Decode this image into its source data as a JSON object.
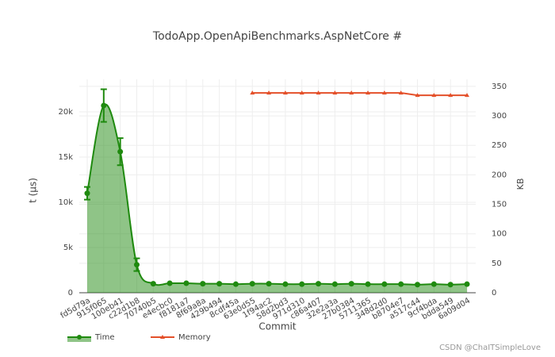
{
  "chart_data": {
    "type": "line",
    "title": "TodoApp.OpenApiBenchmarks.AspNetCore #",
    "xlabel": "Commit",
    "ylabel": "t (µs)",
    "y2label": "KB",
    "categories": [
      "fd5d79a",
      "915f065",
      "100eb41",
      "c22d1b8",
      "70740b5",
      "e4ecbc0",
      "f8181a7",
      "8f69a8a",
      "429b494",
      "8cdf45a",
      "63e0d55",
      "1f94ac2",
      "58d2bd3",
      "971d310",
      "c86a407",
      "32e2a3a",
      "27b0384",
      "5711365",
      "348d2d0",
      "b8704e7",
      "a517c44",
      "9cf4bda",
      "bdda549",
      "6a09d04"
    ],
    "series": [
      {
        "name": "Time",
        "color": "#1f8a0f",
        "fill": "rgba(31,138,15,0.5)",
        "values": [
          11000,
          20700,
          15600,
          3100,
          1000,
          1050,
          1050,
          1000,
          1000,
          950,
          1000,
          1000,
          950,
          950,
          1000,
          950,
          1000,
          950,
          950,
          950,
          900,
          950,
          900,
          950
        ],
        "errors": [
          700,
          1800,
          1500,
          700,
          null,
          null,
          null,
          null,
          null,
          null,
          null,
          null,
          null,
          null,
          null,
          null,
          null,
          null,
          null,
          null,
          null,
          null,
          null,
          null
        ]
      },
      {
        "name": "Memory",
        "color": "#e4502a",
        "axis": "y2",
        "values": [
          null,
          null,
          null,
          null,
          null,
          null,
          null,
          null,
          null,
          null,
          339,
          339,
          339,
          339,
          339,
          339,
          339,
          339,
          339,
          339,
          335,
          335,
          335,
          335
        ]
      }
    ],
    "ylim": [
      0,
      23600
    ],
    "yticks": [
      0,
      {
        "value": 5000,
        "label": "5k"
      },
      {
        "value": 10000,
        "label": "10k"
      },
      {
        "value": 15000,
        "label": "15k"
      },
      {
        "value": 20000,
        "label": "20k"
      }
    ],
    "y2lim": [
      0,
      362
    ],
    "y2ticks": [
      0,
      50,
      100,
      150,
      200,
      250,
      300,
      350
    ],
    "grid": true,
    "legend": "bottom-left",
    "watermark": "CSDN @ChaITSimpleLove"
  }
}
